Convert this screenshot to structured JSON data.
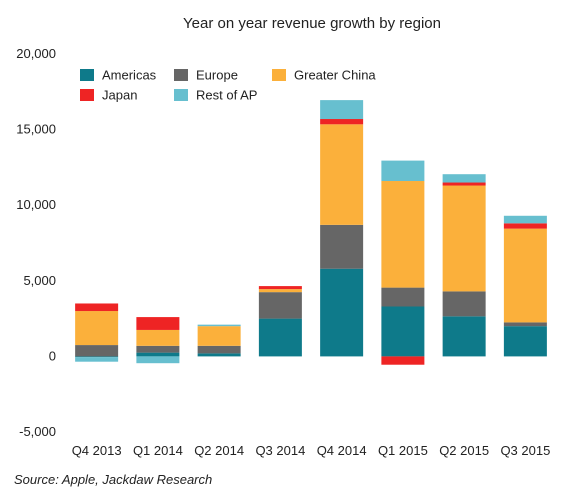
{
  "chart_data": {
    "type": "bar",
    "stacked": true,
    "title": "Year on year revenue growth by region",
    "source": "Source: Apple, Jackdaw Research",
    "categories": [
      "Q4 2013",
      "Q1 2014",
      "Q2 2014",
      "Q3 2014",
      "Q4 2014",
      "Q1 2015",
      "Q2 2015",
      "Q3 2015"
    ],
    "ylim": [
      -5000,
      20000
    ],
    "yticks": [
      -5000,
      0,
      5000,
      10000,
      15000,
      20000
    ],
    "ytick_labels": [
      "-5,000",
      "0",
      "5,000",
      "10,000",
      "15,000",
      "20,000"
    ],
    "grid": false,
    "legend_position": "top-left",
    "series": [
      {
        "name": "Americas",
        "color": "#0e7a8a",
        "values": [
          -50,
          250,
          200,
          2500,
          5800,
          3300,
          2650,
          2000
        ]
      },
      {
        "name": "Europe",
        "color": "#666666",
        "values": [
          750,
          450,
          500,
          1750,
          2900,
          1250,
          1650,
          250
        ]
      },
      {
        "name": "Greater China",
        "color": "#fbb03b",
        "values": [
          2250,
          1050,
          1300,
          200,
          6650,
          7050,
          7000,
          6200
        ]
      },
      {
        "name": "Japan",
        "color": "#ee2424",
        "values": [
          500,
          850,
          0,
          200,
          350,
          -550,
          200,
          350
        ]
      },
      {
        "name": "Rest of AP",
        "color": "#67bfcf",
        "values": [
          -300,
          -450,
          100,
          0,
          1250,
          1350,
          550,
          500
        ]
      }
    ]
  }
}
